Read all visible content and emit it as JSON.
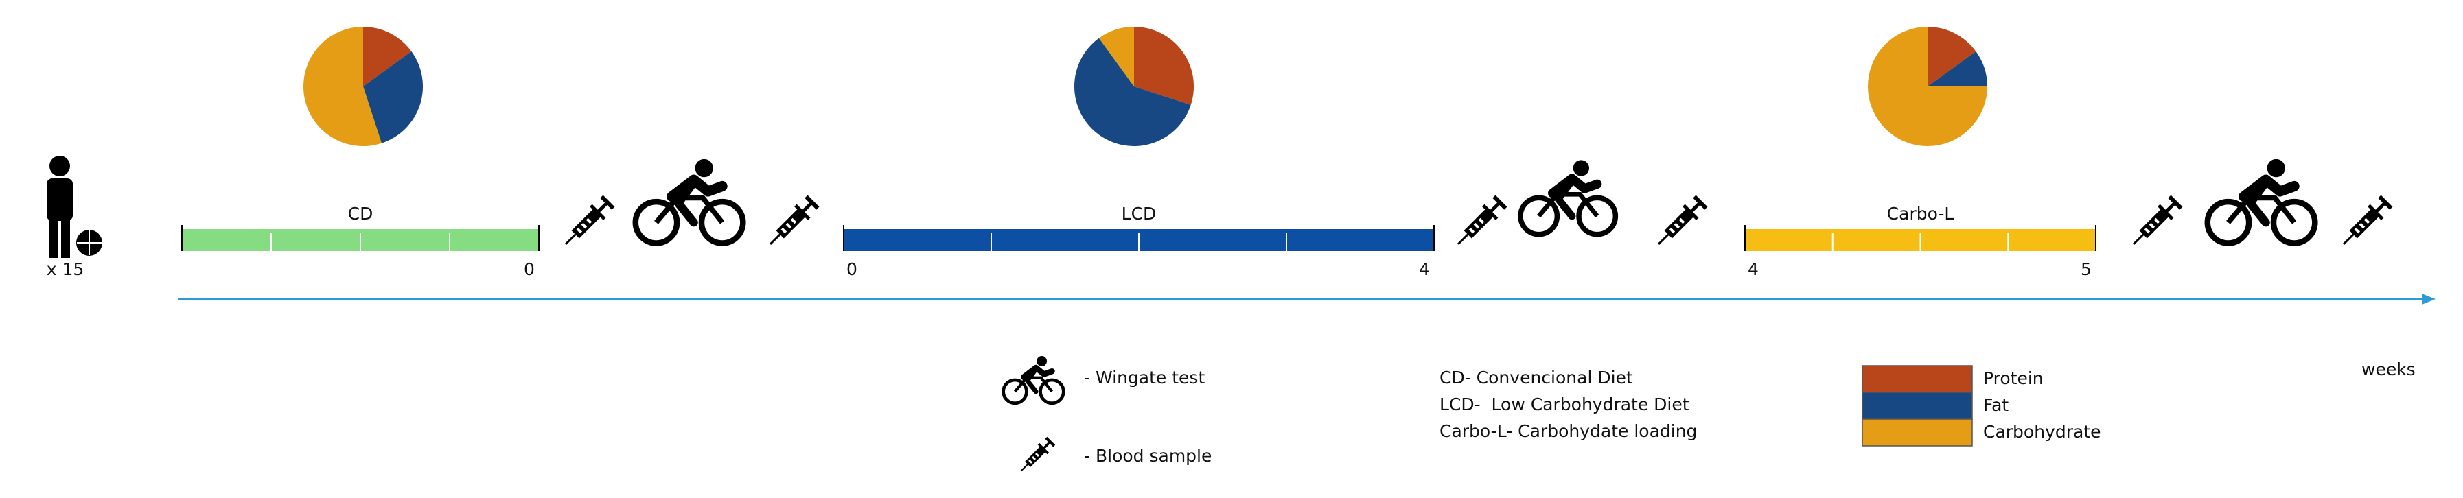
{
  "participants": "x 15",
  "axis_label": "weeks",
  "phases": [
    {
      "label": "CD",
      "color": "#86dc80",
      "end_label": "0",
      "shares": [
        15,
        30,
        55
      ]
    },
    {
      "label": "LCD",
      "color": "#0d4fa3",
      "start_label": "0",
      "end_label": "4",
      "shares": [
        30,
        60,
        10
      ]
    },
    {
      "label": "Carbo-L",
      "color": "#f6be12",
      "start_label": "4",
      "end_label": "5",
      "shares": [
        15,
        10,
        75
      ]
    }
  ],
  "nutrients": [
    {
      "name": "Protein",
      "color": "#b8461a"
    },
    {
      "name": "Fat",
      "color": "#174883"
    },
    {
      "name": "Carbohydrate",
      "color": "#e49d14"
    }
  ],
  "icon_legend": [
    "- Wingate test",
    "- Blood sample"
  ],
  "abbreviations": [
    "CD- Convencional Diet",
    "LCD-  Low Carbohydrate Diet",
    "Carbo-L- Carbohydate loading"
  ]
}
